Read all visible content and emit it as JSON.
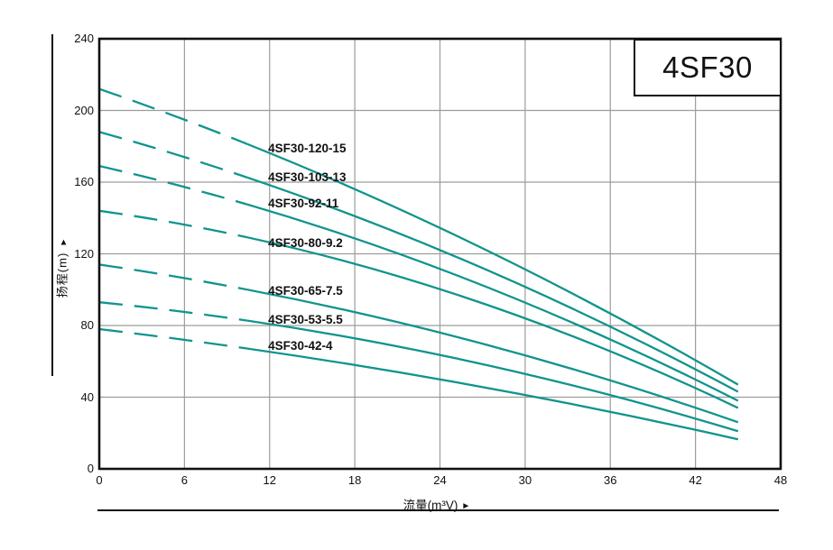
{
  "title_box": {
    "label": "4SF30"
  },
  "y_axis": {
    "label": "扬程(m)",
    "arrow": "▲",
    "ticks": [
      0,
      40,
      80,
      120,
      160,
      200,
      240
    ]
  },
  "x_axis": {
    "label": "流量(m³V)",
    "arrow": "►",
    "ticks": [
      0,
      6,
      12,
      18,
      24,
      30,
      36,
      42,
      48
    ]
  },
  "colors": {
    "curve": "#10948D",
    "grid": "#9C9C9C",
    "axis": "#111111",
    "background": "#FFFFFF"
  },
  "chart_data": {
    "type": "line",
    "title": "4SF30",
    "xlabel": "流量(m³V)",
    "ylabel": "扬程(m)",
    "xlim": [
      0,
      48
    ],
    "ylim": [
      0,
      240
    ],
    "x_ticks": [
      0,
      6,
      12,
      18,
      24,
      30,
      36,
      42,
      48
    ],
    "y_ticks": [
      0,
      40,
      80,
      120,
      160,
      200,
      240
    ],
    "grid": true,
    "legend_position": "inline-labels-on-curves",
    "line_style": "dashed_until_transition_then_solid",
    "dash_solid_transition_x": 10.4,
    "label_anchor_x": 11.9,
    "series": [
      {
        "name": "4SF30-120-15",
        "x": [
          0,
          22.5,
          45
        ],
        "y": [
          212,
          140,
          47
        ],
        "label_y": 179
      },
      {
        "name": "4SF30-103-13",
        "x": [
          0,
          22.5,
          45
        ],
        "y": [
          188,
          127,
          43
        ],
        "label_y": 163
      },
      {
        "name": "4SF30-92-11",
        "x": [
          0,
          22.5,
          45
        ],
        "y": [
          169,
          116,
          38
        ],
        "label_y": 148
      },
      {
        "name": "4SF30-80-9.2",
        "x": [
          0,
          22.5,
          45
        ],
        "y": [
          144,
          104,
          34
        ],
        "label_y": 126
      },
      {
        "name": "4SF30-65-7.5",
        "x": [
          0,
          22.5,
          45
        ],
        "y": [
          114,
          79,
          26
        ],
        "label_y": 99.5
      },
      {
        "name": "4SF30-53-5.5",
        "x": [
          0,
          22.5,
          45
        ],
        "y": [
          93,
          66,
          21
        ],
        "label_y": 83.5
      },
      {
        "name": "4SF30-42-4",
        "x": [
          0,
          22.5,
          45
        ],
        "y": [
          78,
          52,
          16.5
        ],
        "label_y": 68.5
      }
    ]
  }
}
